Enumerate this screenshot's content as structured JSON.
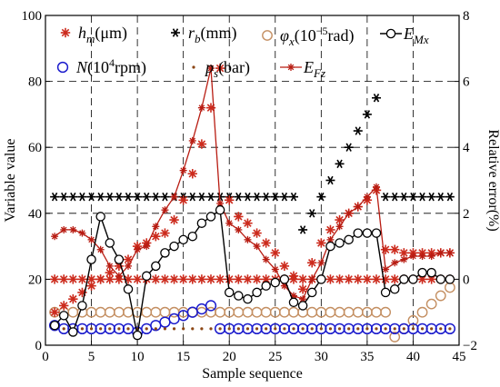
{
  "chart_data": {
    "type": "line",
    "xlabel": "Sample sequence",
    "ylabel": "Variable value",
    "y2label": "Relative error(%)",
    "xlim": [
      0,
      45
    ],
    "ylim": [
      0,
      100
    ],
    "y2lim": [
      -2,
      8
    ],
    "xticks": [
      0,
      5,
      10,
      15,
      20,
      25,
      30,
      35,
      40,
      45
    ],
    "yticks": [
      0,
      20,
      40,
      60,
      80,
      100
    ],
    "y2ticks": [
      -2,
      0,
      2,
      4,
      6,
      8
    ],
    "grid": "dashed",
    "legend": [
      {
        "key": "hm",
        "label": "h_m(μm)",
        "parts": [
          "h",
          "m",
          "(",
          "μ",
          "m)"
        ]
      },
      {
        "key": "rb",
        "label": "r_b(mm)",
        "parts": [
          "r",
          "b",
          "(mm)"
        ]
      },
      {
        "key": "phix",
        "label": "φ_x(10^-5rad)",
        "parts": [
          "φ",
          "x",
          "(10",
          "−5",
          "rad)"
        ]
      },
      {
        "key": "EMx",
        "label": "E_Mx",
        "parts": [
          "E",
          "Mx"
        ]
      },
      {
        "key": "N",
        "label": "N(10^4rpm)",
        "parts": [
          "N",
          "(10",
          "4",
          "rpm)"
        ]
      },
      {
        "key": "ps",
        "label": "p_s(bar)",
        "parts": [
          "p",
          "s",
          "(bar)"
        ]
      },
      {
        "key": "EFz",
        "label": "E_Fz",
        "parts": [
          "E",
          "Fz"
        ]
      }
    ],
    "x": [
      1,
      2,
      3,
      4,
      5,
      6,
      7,
      8,
      9,
      10,
      11,
      12,
      13,
      14,
      15,
      16,
      17,
      18,
      19,
      20,
      21,
      22,
      23,
      24,
      25,
      26,
      27,
      28,
      29,
      30,
      31,
      32,
      33,
      34,
      35,
      36,
      37,
      38,
      39,
      40,
      41,
      42,
      43,
      44
    ],
    "series": [
      {
        "key": "hm",
        "axis": "left",
        "color": "#cc2b1d",
        "values": [
          10,
          12,
          14,
          16,
          18,
          20,
          22,
          24,
          26,
          30,
          31,
          33,
          34,
          38,
          44,
          52,
          61,
          72,
          84,
          44,
          39,
          37,
          34,
          31,
          28,
          24,
          21,
          17,
          25,
          31,
          35,
          38,
          40,
          42,
          44,
          47,
          29,
          29,
          28,
          28,
          28,
          28,
          28,
          28
        ]
      },
      {
        "key": "rb",
        "axis": "left",
        "color": "#000000",
        "values": [
          45,
          45,
          45,
          45,
          45,
          45,
          45,
          45,
          45,
          45,
          45,
          45,
          45,
          45,
          45,
          45,
          45,
          45,
          45,
          45,
          45,
          45,
          45,
          45,
          45,
          45,
          45,
          35,
          40,
          45,
          50,
          55,
          60,
          65,
          70,
          75,
          45,
          45,
          45,
          45,
          45,
          45,
          45,
          45
        ]
      },
      {
        "key": "phix",
        "axis": "left",
        "color": "#c48f62",
        "values": [
          10,
          10,
          10,
          10,
          10,
          10,
          10,
          10,
          10,
          10,
          10,
          10,
          10,
          10,
          10,
          10,
          10,
          10,
          10,
          10,
          10,
          10,
          10,
          10,
          10,
          10,
          10,
          10,
          10,
          10,
          10,
          10,
          10,
          10,
          10,
          10,
          10,
          2.5,
          5,
          7.5,
          10,
          12.5,
          15,
          17.5
        ]
      },
      {
        "key": "EMx",
        "axis": "right",
        "color": "#000000",
        "values": [
          -1.4,
          -1.1,
          -1.6,
          -0.8,
          0.6,
          1.9,
          1.1,
          0.6,
          -0.3,
          -1.7,
          0.1,
          0.4,
          0.8,
          1.0,
          1.2,
          1.3,
          1.7,
          1.9,
          2.1,
          -0.4,
          -0.5,
          -0.6,
          -0.4,
          -0.2,
          -0.1,
          0.0,
          -0.7,
          -0.8,
          -0.4,
          0.0,
          1.0,
          1.1,
          1.2,
          1.4,
          1.4,
          1.4,
          -0.4,
          -0.3,
          0.0,
          0.0,
          0.2,
          0.2,
          0.0,
          0.0
        ]
      },
      {
        "key": "N",
        "axis": "left",
        "color": "#1a1acc",
        "values": [
          6,
          5,
          5,
          5,
          5,
          5,
          5,
          5,
          5,
          4,
          5,
          6,
          7,
          8,
          9,
          10,
          11,
          12,
          5,
          5,
          5,
          5,
          5,
          5,
          5,
          5,
          5,
          5,
          5,
          5,
          5,
          5,
          5,
          5,
          5,
          5,
          5,
          5,
          5,
          5,
          5,
          5,
          5,
          5
        ]
      },
      {
        "key": "ps",
        "axis": "left",
        "color": "#8b4513",
        "values": [
          5,
          5,
          5,
          5,
          5,
          5,
          5,
          5,
          5,
          5,
          5,
          5,
          5,
          5,
          5,
          5,
          5,
          5,
          5,
          5,
          5,
          5,
          5,
          5,
          5,
          5,
          5,
          5,
          5,
          5,
          5,
          5,
          5,
          5,
          5,
          5,
          5,
          5,
          5,
          5,
          5,
          5,
          5,
          5
        ]
      },
      {
        "key": "EFz",
        "axis": "right",
        "color": "#b81c12",
        "values": [
          1.3,
          1.5,
          1.5,
          1.4,
          1.2,
          0.9,
          0.4,
          0.1,
          0.4,
          0.9,
          1.0,
          1.6,
          2.1,
          2.5,
          3.3,
          4.2,
          5.2,
          6.4,
          2.3,
          1.7,
          1.5,
          1.2,
          1.0,
          0.6,
          0.3,
          -0.2,
          -0.5,
          -0.6,
          0.0,
          0.5,
          1.2,
          1.6,
          2.0,
          2.2,
          2.5,
          2.8,
          0.3,
          0.5,
          0.6,
          0.7,
          0.7,
          0.7,
          0.8,
          0.8
        ]
      },
      {
        "key": "constant20",
        "axis": "left",
        "color": "#cc2b1d",
        "values": [
          20,
          20,
          20,
          20,
          20,
          20,
          20,
          20,
          20,
          20,
          20,
          20,
          20,
          20,
          20,
          20,
          20,
          20,
          20,
          20,
          20,
          20,
          20,
          20,
          20,
          20,
          20,
          20,
          20,
          20,
          20,
          20,
          20,
          20,
          20,
          20,
          20,
          20,
          20,
          20,
          20,
          20,
          20,
          20
        ]
      }
    ]
  }
}
